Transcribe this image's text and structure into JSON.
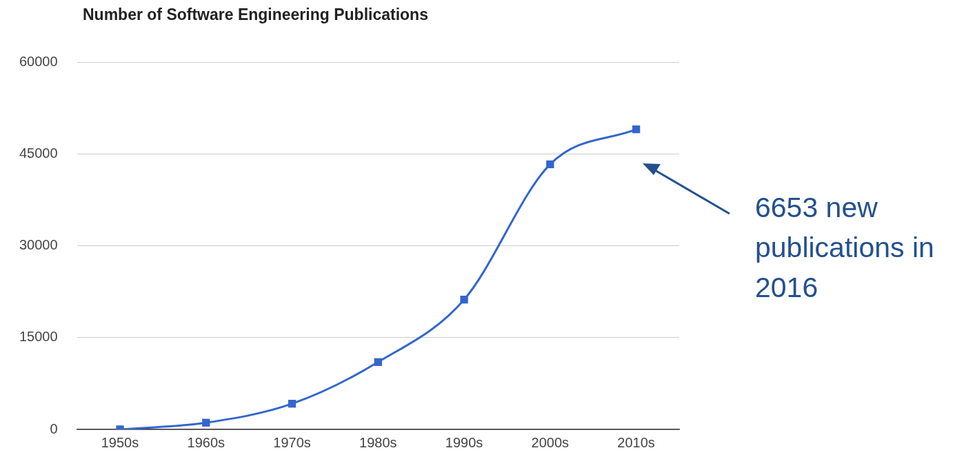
{
  "chart_data": {
    "type": "line",
    "title": "Number of Software Engineering Publications",
    "categories": [
      "1950s",
      "1960s",
      "1970s",
      "1980s",
      "1990s",
      "2000s",
      "2010s"
    ],
    "series": [
      {
        "color": "#3366cc",
        "values": [
          0,
          1100,
          4200,
          11000,
          21200,
          43300,
          49000
        ]
      }
    ],
    "ylim": [
      0,
      60000
    ],
    "yticks": [
      0,
      15000,
      30000,
      45000,
      60000
    ],
    "grid": "y",
    "legend": false,
    "marker": "square",
    "annotations": [
      "6653 new publications in 2016"
    ]
  }
}
